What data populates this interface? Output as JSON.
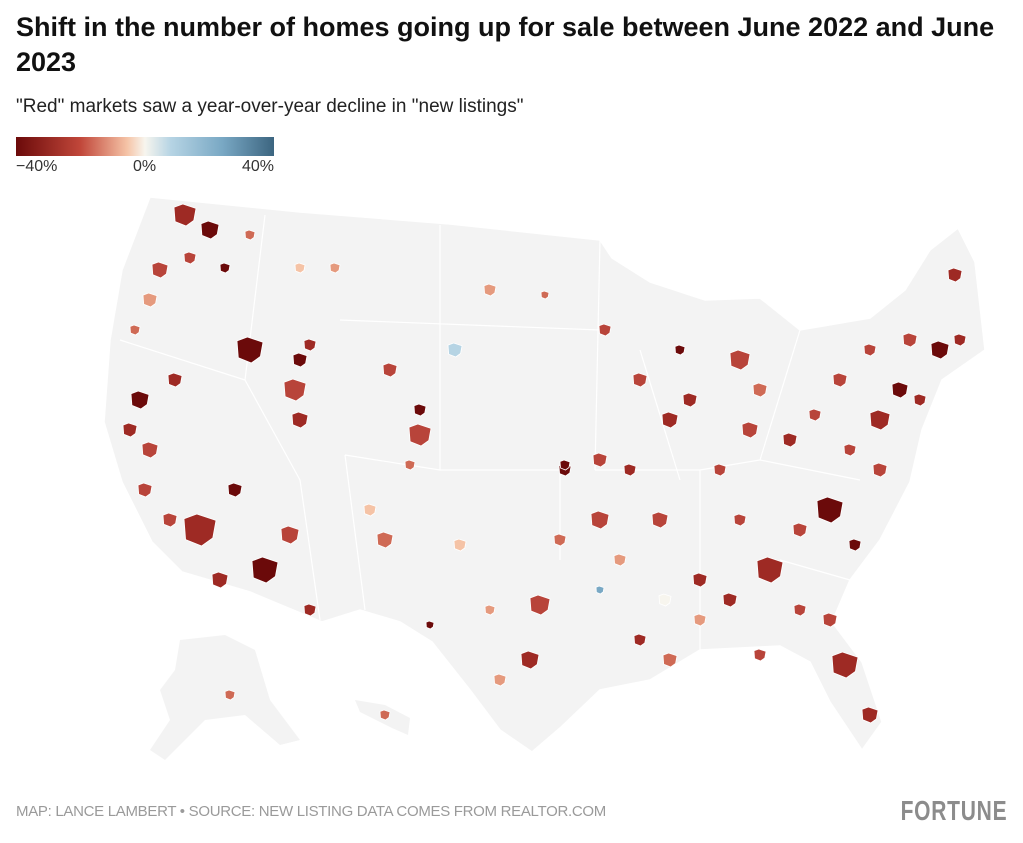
{
  "title": "Shift in the number of homes going up for sale between June 2022 and June 2023",
  "subtitle": "\"Red\" markets saw a year-over-year decline in \"new listings\"",
  "legend": {
    "min_label": "−40%",
    "mid_label": "0%",
    "max_label": "40%",
    "range": [
      -40,
      40
    ]
  },
  "colors": {
    "land": "#f3f3f3",
    "border": "#ffffff",
    "scale": [
      "#6b0a0a",
      "#9e2a24",
      "#b8443a",
      "#cf6a55",
      "#e59a7e",
      "#f5c3a6",
      "#f7f5ee",
      "#b6d4e4",
      "#79a8c4",
      "#3c6580"
    ]
  },
  "footer": {
    "credit": "MAP: LANCE LAMBERT • SOURCE: NEW LISTING DATA COMES FROM REALTOR.COM",
    "logo": "FORTUNE"
  }
}
